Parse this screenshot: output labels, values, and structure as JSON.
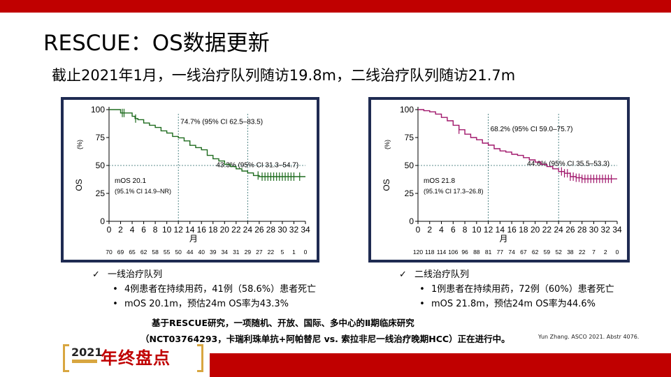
{
  "slide": {
    "title": "RESCUE：OS数据更新",
    "subtitle": "截止2021年1月，一线治疗队列随访19.8m，二线治疗队列随访21.7m"
  },
  "chart_data": [
    {
      "type": "line",
      "ylabel": "OS",
      "yunit": "(%)",
      "xlabel": "月",
      "ylim": [
        0,
        100
      ],
      "xlim": [
        0,
        34
      ],
      "y_ticks": [
        "0",
        "25",
        "50",
        "75",
        "100"
      ],
      "x_ticks": [
        "0",
        "2",
        "4",
        "6",
        "8",
        "10",
        "12",
        "14",
        "16",
        "18",
        "20",
        "22",
        "24",
        "26",
        "28",
        "30",
        "32",
        "34"
      ],
      "at_risk": [
        "70",
        "69",
        "65",
        "62",
        "58",
        "55",
        "50",
        "44",
        "40",
        "39",
        "34",
        "31",
        "29",
        "27",
        "22",
        "5",
        "1",
        "0"
      ],
      "annotations": [
        {
          "text": "74.7% (95% CI 62.5–83.5)",
          "x": 12,
          "y": 74.7
        },
        {
          "text": "43.3% (95% CI 31.3–54.7)",
          "x": 24,
          "y": 43.3
        }
      ],
      "median_text": [
        "mOS 20.1",
        "(95.1% CI 14.9–NR)"
      ],
      "color": "#1e6b1e",
      "series": [
        {
          "x": [
            0,
            1.5,
            2,
            3,
            4,
            4.5,
            5,
            6,
            7,
            8,
            9,
            10,
            11,
            12,
            13,
            14,
            15,
            16,
            17,
            18,
            19,
            20,
            21,
            22,
            23,
            24,
            25,
            26,
            27,
            28,
            29,
            30,
            31,
            32,
            33,
            34
          ],
          "y": [
            100,
            100,
            97,
            97,
            94,
            92,
            91,
            88,
            86,
            84,
            81,
            79,
            76,
            74.7,
            72,
            68,
            66,
            64,
            59,
            56,
            54,
            51,
            49,
            47,
            45,
            43.3,
            41,
            40,
            40,
            40,
            40,
            40,
            40,
            40,
            40,
            40
          ]
        }
      ],
      "censor_x": [
        2.3,
        2.6,
        4.6,
        25.8,
        26.5,
        27,
        27.5,
        28,
        28.5,
        29,
        29.5,
        30,
        30.5,
        31,
        31.5,
        32,
        33
      ]
    },
    {
      "type": "line",
      "ylabel": "OS",
      "yunit": "(%)",
      "xlabel": "月",
      "ylim": [
        0,
        100
      ],
      "xlim": [
        0,
        34
      ],
      "y_ticks": [
        "0",
        "25",
        "50",
        "75",
        "100"
      ],
      "x_ticks": [
        "0",
        "2",
        "4",
        "6",
        "8",
        "10",
        "12",
        "14",
        "16",
        "18",
        "20",
        "22",
        "24",
        "26",
        "28",
        "30",
        "32",
        "34"
      ],
      "at_risk": [
        "120",
        "118",
        "114",
        "106",
        "96",
        "88",
        "81",
        "77",
        "74",
        "67",
        "62",
        "59",
        "52",
        "38",
        "22",
        "7",
        "2",
        "0"
      ],
      "annotations": [
        {
          "text": "68.2% (95% CI 59.0–75.7)",
          "x": 12,
          "y": 68.2
        },
        {
          "text": "44.6% (95% CI 35.5–53.3)",
          "x": 24,
          "y": 44.6
        }
      ],
      "median_text": [
        "mOS 21.8",
        "(95.1% CI 17.3–26.8)"
      ],
      "color": "#a0176b",
      "series": [
        {
          "x": [
            0,
            1,
            2,
            3,
            4,
            5,
            6,
            7,
            8,
            9,
            10,
            11,
            12,
            13,
            14,
            15,
            16,
            17,
            18,
            19,
            20,
            21,
            22,
            23,
            24,
            25,
            26,
            27,
            28,
            29,
            30,
            31,
            32,
            33,
            34
          ],
          "y": [
            100,
            99,
            98,
            96,
            93,
            90,
            86,
            82,
            78,
            75,
            73,
            70,
            68.2,
            65,
            63,
            62,
            60,
            59,
            57,
            55,
            53,
            51,
            49,
            47,
            44.6,
            43,
            40,
            39,
            38,
            38,
            38,
            38,
            38,
            38,
            38
          ]
        }
      ],
      "censor_x": [
        7,
        24.5,
        25,
        25.5,
        26,
        26.5,
        27,
        27.5,
        28,
        28.5,
        29,
        29.5,
        30,
        30.5,
        31,
        31.5,
        32,
        32.5,
        33
      ]
    }
  ],
  "cohorts": {
    "first": {
      "heading": "一线治疗队列",
      "bullet1": "4例患者在持续用药，41例（58.6%）患者死亡",
      "bullet2": "mOS 20.1m，预估24m OS率为43.3%"
    },
    "second": {
      "heading": "二线治疗队列",
      "bullet1": "1例患者在持续用药，72例（60%）患者死亡",
      "bullet2": "mOS 21.8m，预估24m OS率为44.6%"
    }
  },
  "glyphs": {
    "check": "✓",
    "dot": "•"
  },
  "footer": {
    "line1": "基于RESCUE研究，一项随机、开放、国际、多中心的Ⅱ期临床研究",
    "line2": "（NCT03764293，卡瑞利珠单抗+阿帕替尼 vs. 索拉非尼一线治疗晚期HCC）正在进行中。",
    "citation": "Yun Zhang. ASCO 2021. Abstr 4076."
  },
  "logo": {
    "year": "2021",
    "text": "年终盘点"
  },
  "colors": {
    "accent": "#c00000",
    "frame": "#1f2b52",
    "gold": "#d8a640"
  }
}
